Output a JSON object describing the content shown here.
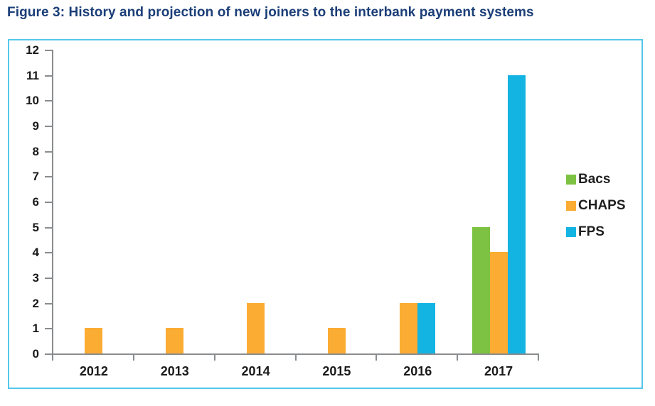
{
  "chart_data": {
    "type": "bar",
    "title": "Figure 3: History and projection of new joiners to the interbank payment systems",
    "categories": [
      "2012",
      "2013",
      "2014",
      "2015",
      "2016",
      "2017"
    ],
    "series": [
      {
        "name": "Bacs",
        "color": "#7dc242",
        "values": [
          0,
          0,
          0,
          0,
          0,
          5
        ]
      },
      {
        "name": "CHAPS",
        "color": "#fbac33",
        "values": [
          1,
          1,
          2,
          1,
          2,
          4
        ]
      },
      {
        "name": "FPS",
        "color": "#14b4e2",
        "values": [
          0,
          0,
          0,
          0,
          2,
          11
        ]
      }
    ],
    "y_ticks": [
      0,
      1,
      2,
      3,
      4,
      5,
      6,
      7,
      8,
      9,
      10,
      11,
      12
    ],
    "ylim": [
      0,
      12
    ],
    "xlabel": "",
    "ylabel": "",
    "grid": false,
    "legend_position": "right",
    "legend_entries": [
      "Bacs",
      "CHAPS",
      "FPS"
    ]
  },
  "colors": {
    "frame_border": "#54c7e9",
    "axis_line": "#8a8c8e",
    "title_text": "#1b3e78",
    "tick_label_text": "#1a1a1a"
  }
}
